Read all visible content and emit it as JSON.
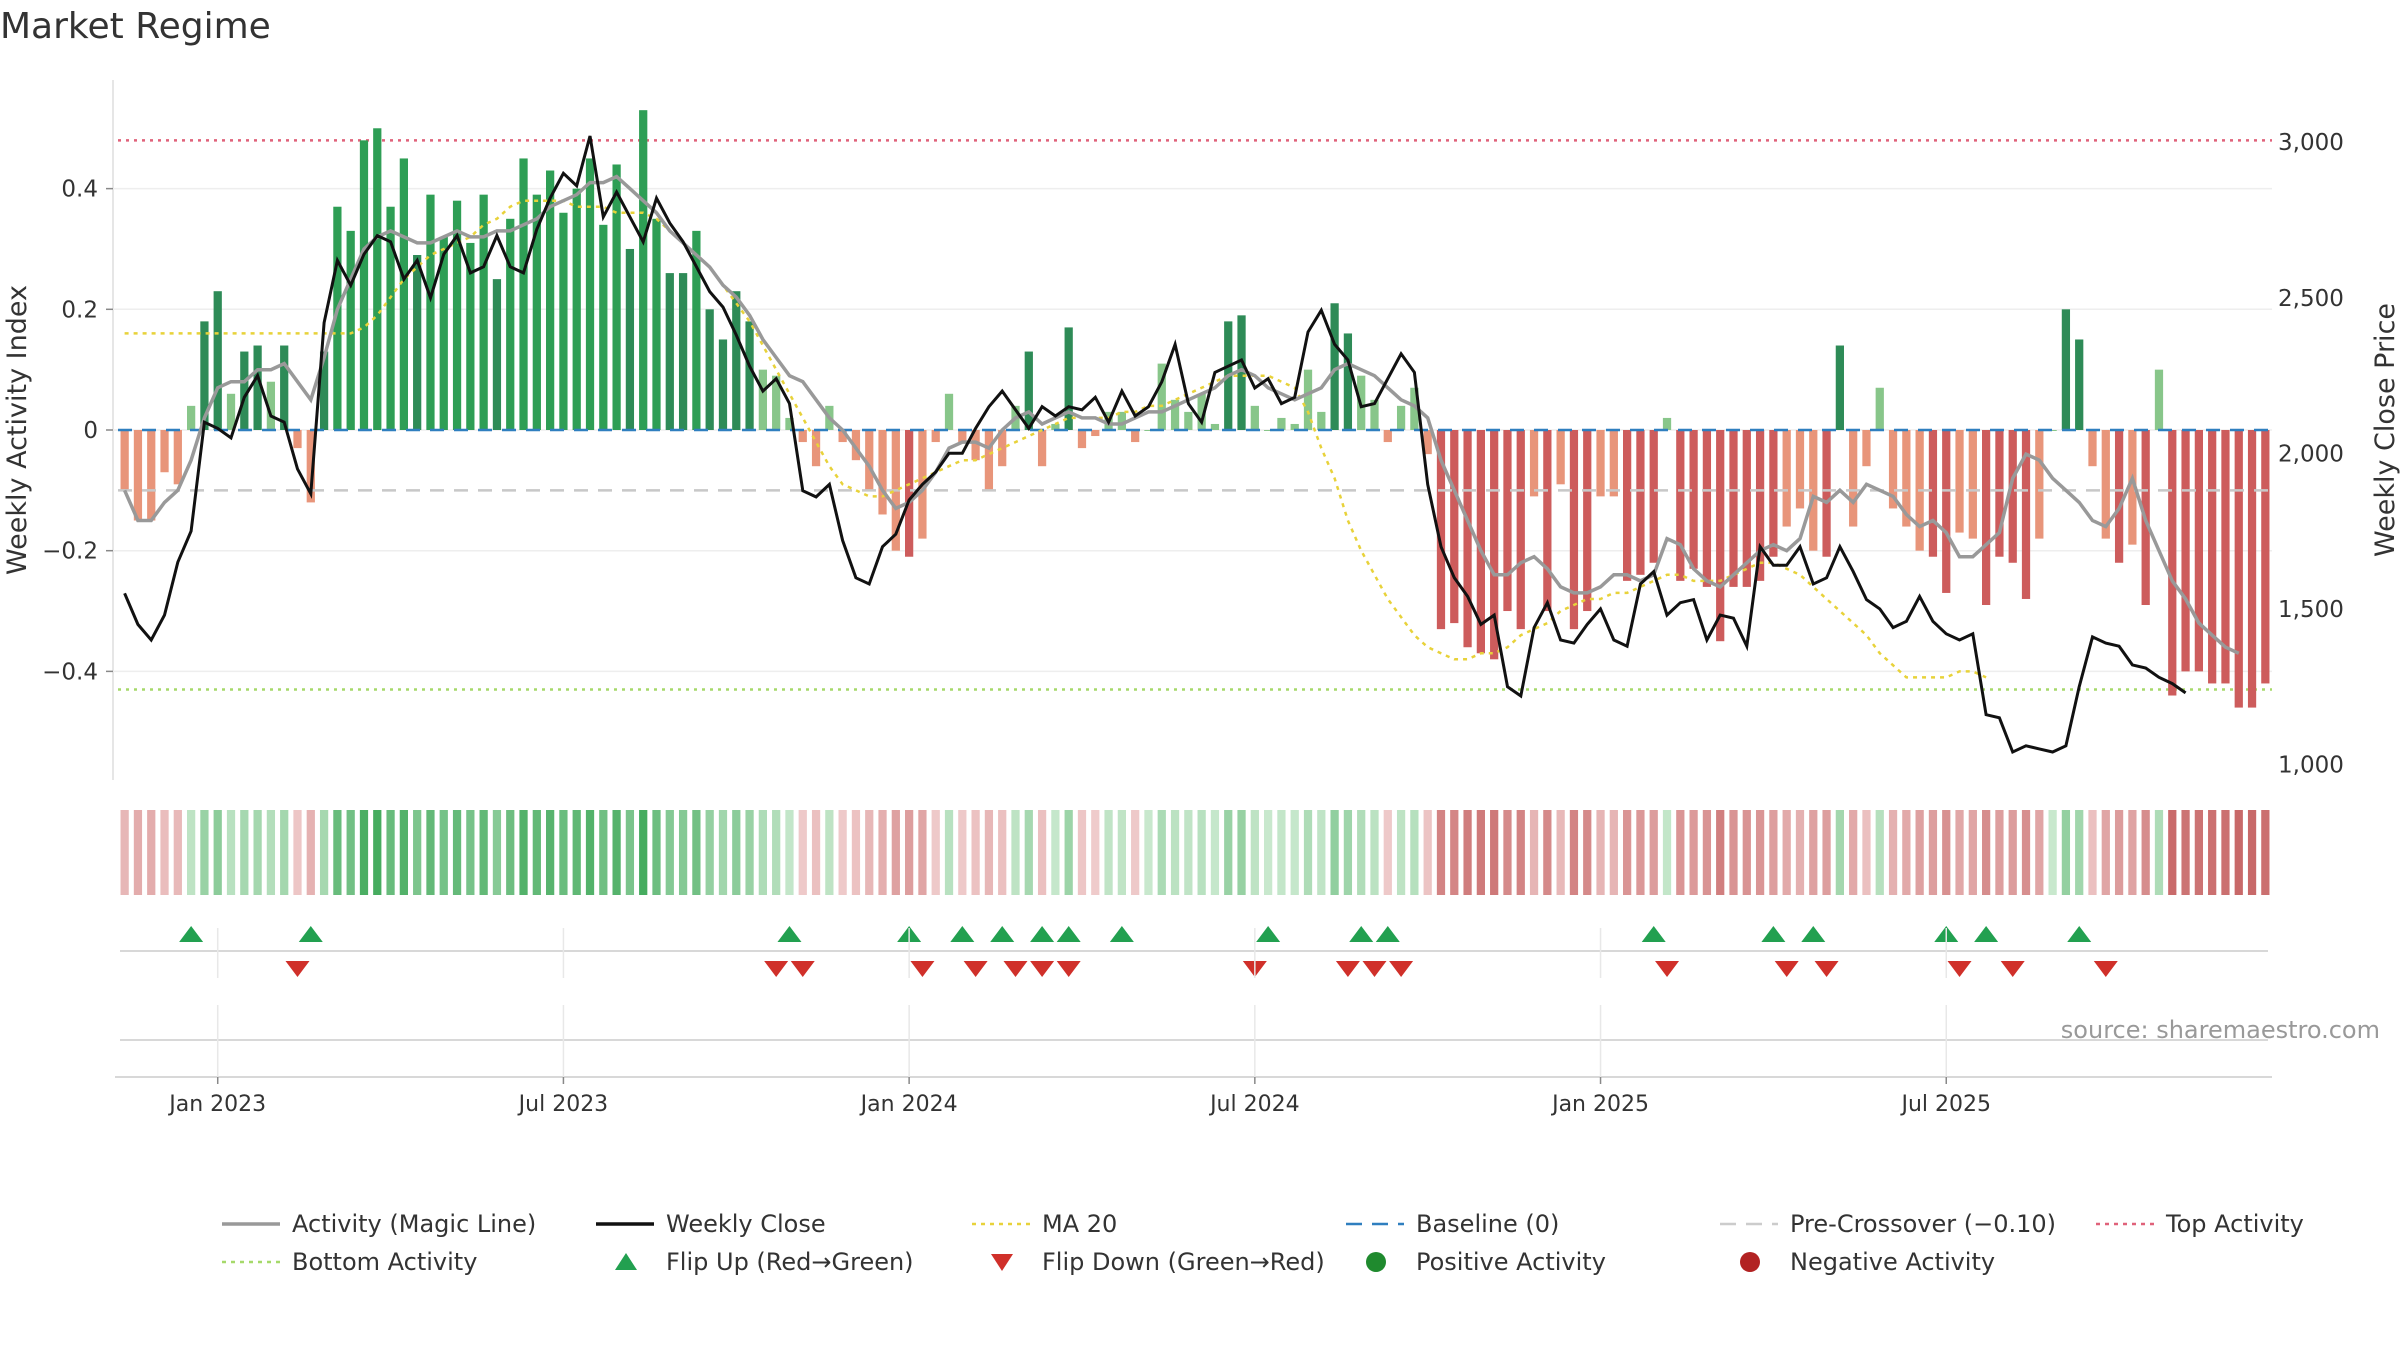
{
  "title": "Market Regime",
  "source": "source: sharemaestro.com",
  "chart_data": {
    "type": "bar",
    "title": "Market Regime",
    "ylabel_left": "Weekly Activity Index",
    "ylabel_right": "Weekly Close Price",
    "ylim_left": [
      -0.58,
      0.58
    ],
    "ylim_right": [
      950,
      3200
    ],
    "yticks_left": [
      {
        "v": 0.4,
        "label": "0.4"
      },
      {
        "v": 0.2,
        "label": "0.2"
      },
      {
        "v": 0,
        "label": "0"
      },
      {
        "v": -0.2,
        "label": "−0.2"
      },
      {
        "v": -0.4,
        "label": "−0.4"
      }
    ],
    "yticks_right": [
      {
        "v": 3000,
        "label": "3,000"
      },
      {
        "v": 2500,
        "label": "2,500"
      },
      {
        "v": 2000,
        "label": "2,000"
      },
      {
        "v": 1500,
        "label": "1,500"
      },
      {
        "v": 1000,
        "label": "1,000"
      }
    ],
    "x_ticks": [
      {
        "week": 7,
        "label": "Jan 2023"
      },
      {
        "week": 33,
        "label": "Jul 2023"
      },
      {
        "week": 59,
        "label": "Jan 2024"
      },
      {
        "week": 85,
        "label": "Jul 2024"
      },
      {
        "week": 111,
        "label": "Jan 2025"
      },
      {
        "week": 137,
        "label": "Jul 2025"
      }
    ],
    "grid": true,
    "reference_lines": {
      "baseline": 0,
      "pre_crossover": -0.1,
      "top_activity": 0.48,
      "bottom_activity": -0.43
    },
    "activity": [
      -0.1,
      -0.15,
      -0.15,
      -0.07,
      -0.09,
      0.04,
      0.18,
      0.23,
      0.06,
      0.13,
      0.14,
      0.08,
      0.14,
      -0.03,
      -0.12,
      0.13,
      0.37,
      0.33,
      0.48,
      0.5,
      0.37,
      0.45,
      0.29,
      0.39,
      0.32,
      0.38,
      0.31,
      0.39,
      0.25,
      0.35,
      0.45,
      0.39,
      0.43,
      0.36,
      0.4,
      0.45,
      0.34,
      0.44,
      0.3,
      0.53,
      0.35,
      0.26,
      0.26,
      0.33,
      0.2,
      0.15,
      0.23,
      0.18,
      0.1,
      0.09,
      0.02,
      -0.02,
      -0.06,
      0.04,
      -0.02,
      -0.05,
      -0.1,
      -0.14,
      -0.2,
      -0.21,
      -0.18,
      -0.02,
      0.06,
      -0.02,
      -0.05,
      -0.1,
      -0.06,
      0.04,
      0.13,
      -0.06,
      0.01,
      0.17,
      -0.03,
      -0.01,
      0.03,
      0.03,
      -0.02,
      0.0,
      0.11,
      0.05,
      0.03,
      0.06,
      0.01,
      0.18,
      0.19,
      0.04,
      0.0,
      0.02,
      0.01,
      0.1,
      0.03,
      0.21,
      0.16,
      0.09,
      0.05,
      -0.02,
      0.04,
      0.07,
      -0.04,
      -0.33,
      -0.32,
      -0.36,
      -0.37,
      -0.38,
      -0.3,
      -0.33,
      -0.11,
      -0.3,
      -0.09,
      -0.33,
      -0.3,
      -0.11,
      -0.11,
      -0.25,
      -0.24,
      -0.22,
      0.02,
      -0.25,
      -0.23,
      -0.26,
      -0.35,
      -0.26,
      -0.26,
      -0.25,
      -0.21,
      -0.16,
      -0.13,
      -0.2,
      -0.21,
      0.14,
      -0.16,
      -0.06,
      0.07,
      -0.13,
      -0.16,
      -0.2,
      -0.21,
      -0.27,
      -0.17,
      -0.18,
      -0.29,
      -0.21,
      -0.22,
      -0.28,
      -0.18,
      0.0,
      0.2,
      0.15,
      -0.06,
      -0.18,
      -0.22,
      -0.19,
      -0.29,
      0.1,
      -0.44,
      -0.4,
      -0.4,
      -0.42,
      -0.42,
      -0.46,
      -0.46,
      -0.42
    ],
    "close": [
      1550,
      1450,
      1400,
      1480,
      1650,
      1750,
      2100,
      2080,
      2050,
      2180,
      2250,
      2120,
      2100,
      1950,
      1870,
      2420,
      2620,
      2540,
      2640,
      2700,
      2680,
      2560,
      2620,
      2500,
      2640,
      2700,
      2580,
      2600,
      2700,
      2600,
      2580,
      2720,
      2820,
      2900,
      2860,
      3020,
      2760,
      2840,
      2760,
      2680,
      2820,
      2740,
      2680,
      2600,
      2520,
      2470,
      2380,
      2280,
      2200,
      2240,
      2160,
      1880,
      1860,
      1900,
      1720,
      1600,
      1580,
      1700,
      1740,
      1850,
      1900,
      1940,
      2000,
      2000,
      2080,
      2150,
      2200,
      2140,
      2080,
      2150,
      2120,
      2150,
      2140,
      2180,
      2100,
      2200,
      2120,
      2150,
      2230,
      2350,
      2160,
      2100,
      2260,
      2280,
      2300,
      2210,
      2240,
      2160,
      2180,
      2390,
      2460,
      2350,
      2300,
      2150,
      2160,
      2240,
      2320,
      2260,
      1900,
      1700,
      1600,
      1540,
      1450,
      1480,
      1250,
      1220,
      1440,
      1520,
      1400,
      1390,
      1450,
      1500,
      1400,
      1380,
      1580,
      1620,
      1480,
      1520,
      1530,
      1400,
      1480,
      1470,
      1380,
      1700,
      1640,
      1640,
      1700,
      1580,
      1600,
      1700,
      1620,
      1530,
      1500,
      1440,
      1460,
      1540,
      1460,
      1420,
      1400,
      1420,
      1160,
      1150,
      1040,
      1060,
      1050,
      1040,
      1060,
      1250,
      1410,
      1390,
      1380,
      1320,
      1310,
      1280,
      1260,
      1230
    ],
    "magic": [
      -0.1,
      -0.15,
      -0.15,
      -0.12,
      -0.1,
      -0.05,
      0.02,
      0.07,
      0.08,
      0.08,
      0.1,
      0.1,
      0.11,
      0.08,
      0.05,
      0.12,
      0.2,
      0.25,
      0.3,
      0.32,
      0.33,
      0.32,
      0.31,
      0.31,
      0.32,
      0.33,
      0.32,
      0.32,
      0.33,
      0.33,
      0.34,
      0.35,
      0.37,
      0.38,
      0.39,
      0.41,
      0.41,
      0.42,
      0.4,
      0.38,
      0.36,
      0.33,
      0.31,
      0.29,
      0.27,
      0.24,
      0.22,
      0.19,
      0.15,
      0.12,
      0.09,
      0.08,
      0.05,
      0.02,
      0.0,
      -0.03,
      -0.06,
      -0.1,
      -0.13,
      -0.12,
      -0.1,
      -0.07,
      -0.03,
      -0.02,
      -0.02,
      -0.03,
      0.0,
      0.02,
      0.03,
      0.01,
      0.02,
      0.03,
      0.02,
      0.02,
      0.01,
      0.01,
      0.02,
      0.03,
      0.03,
      0.04,
      0.05,
      0.06,
      0.07,
      0.09,
      0.1,
      0.09,
      0.07,
      0.06,
      0.05,
      0.06,
      0.07,
      0.1,
      0.11,
      0.1,
      0.09,
      0.07,
      0.05,
      0.04,
      0.02,
      -0.05,
      -0.1,
      -0.15,
      -0.2,
      -0.24,
      -0.24,
      -0.22,
      -0.21,
      -0.23,
      -0.26,
      -0.27,
      -0.27,
      -0.26,
      -0.24,
      -0.24,
      -0.25,
      -0.24,
      -0.18,
      -0.19,
      -0.23,
      -0.25,
      -0.26,
      -0.24,
      -0.22,
      -0.2,
      -0.19,
      -0.2,
      -0.18,
      -0.11,
      -0.12,
      -0.1,
      -0.12,
      -0.09,
      -0.1,
      -0.11,
      -0.14,
      -0.16,
      -0.15,
      -0.17,
      -0.21,
      -0.21,
      -0.19,
      -0.17,
      -0.08,
      -0.04,
      -0.05,
      -0.08,
      -0.1,
      -0.12,
      -0.15,
      -0.16,
      -0.13,
      -0.08,
      -0.15,
      -0.2,
      -0.25,
      -0.28,
      -0.32,
      -0.34,
      -0.36,
      -0.37
    ],
    "ma20": [
      0.16,
      0.16,
      0.16,
      0.16,
      0.16,
      0.16,
      0.16,
      0.16,
      0.16,
      0.16,
      0.16,
      0.16,
      0.16,
      0.16,
      0.16,
      0.16,
      0.16,
      0.16,
      0.17,
      0.19,
      0.22,
      0.25,
      0.27,
      0.29,
      0.3,
      0.31,
      0.32,
      0.34,
      0.35,
      0.37,
      0.38,
      0.38,
      0.38,
      0.38,
      0.37,
      0.37,
      0.37,
      0.36,
      0.36,
      0.36,
      0.35,
      0.33,
      0.31,
      0.29,
      0.27,
      0.24,
      0.21,
      0.18,
      0.14,
      0.1,
      0.06,
      0.02,
      -0.02,
      -0.06,
      -0.09,
      -0.1,
      -0.11,
      -0.11,
      -0.1,
      -0.09,
      -0.08,
      -0.07,
      -0.06,
      -0.05,
      -0.05,
      -0.04,
      -0.03,
      -0.02,
      -0.01,
      0.0,
      0.01,
      0.02,
      0.02,
      0.02,
      0.02,
      0.03,
      0.03,
      0.04,
      0.04,
      0.05,
      0.06,
      0.07,
      0.08,
      0.09,
      0.09,
      0.09,
      0.09,
      0.08,
      0.07,
      0.03,
      -0.03,
      -0.08,
      -0.15,
      -0.2,
      -0.24,
      -0.28,
      -0.31,
      -0.34,
      -0.36,
      -0.37,
      -0.38,
      -0.38,
      -0.37,
      -0.37,
      -0.36,
      -0.34,
      -0.33,
      -0.32,
      -0.3,
      -0.29,
      -0.28,
      -0.28,
      -0.27,
      -0.27,
      -0.26,
      -0.25,
      -0.24,
      -0.24,
      -0.25,
      -0.25,
      -0.25,
      -0.24,
      -0.23,
      -0.22,
      -0.22,
      -0.23,
      -0.24,
      -0.26,
      -0.28,
      -0.3,
      -0.32,
      -0.34,
      -0.37,
      -0.39,
      -0.41,
      -0.41,
      -0.41,
      -0.41,
      -0.4,
      -0.4,
      -0.41
    ],
    "flip_up_weeks": [
      5,
      14,
      50,
      59,
      63,
      66,
      69,
      71,
      75,
      86,
      93,
      95,
      115,
      124,
      127,
      137,
      140,
      147
    ],
    "flip_down_weeks": [
      13,
      49,
      51,
      60,
      64,
      67,
      69,
      71,
      85,
      92,
      94,
      96,
      116,
      125,
      128,
      138,
      142,
      149
    ],
    "legend": [
      {
        "label": "Activity (Magic Line)",
        "kind": "line",
        "color": "#999999"
      },
      {
        "label": "Weekly Close",
        "kind": "line",
        "color": "#111111"
      },
      {
        "label": "MA 20",
        "kind": "dotted",
        "color": "#e8d23a"
      },
      {
        "label": "Baseline (0)",
        "kind": "dashed",
        "color": "#2f7fbf"
      },
      {
        "label": "Pre-Crossover (−0.10)",
        "kind": "dashed",
        "color": "#cccccc"
      },
      {
        "label": "Top Activity",
        "kind": "dotted",
        "color": "#e0627a"
      },
      {
        "label": "Bottom Activity",
        "kind": "dotted",
        "color": "#a6d96a"
      },
      {
        "label": "Flip Up (Red→Green)",
        "kind": "triangle-up",
        "color": "#22a050"
      },
      {
        "label": "Flip Down (Green→Red)",
        "kind": "triangle-down",
        "color": "#d0302a"
      },
      {
        "label": "Positive Activity",
        "kind": "dot",
        "color": "#1f8a2e"
      },
      {
        "label": "Negative Activity",
        "kind": "dot",
        "color": "#b22222"
      }
    ]
  }
}
